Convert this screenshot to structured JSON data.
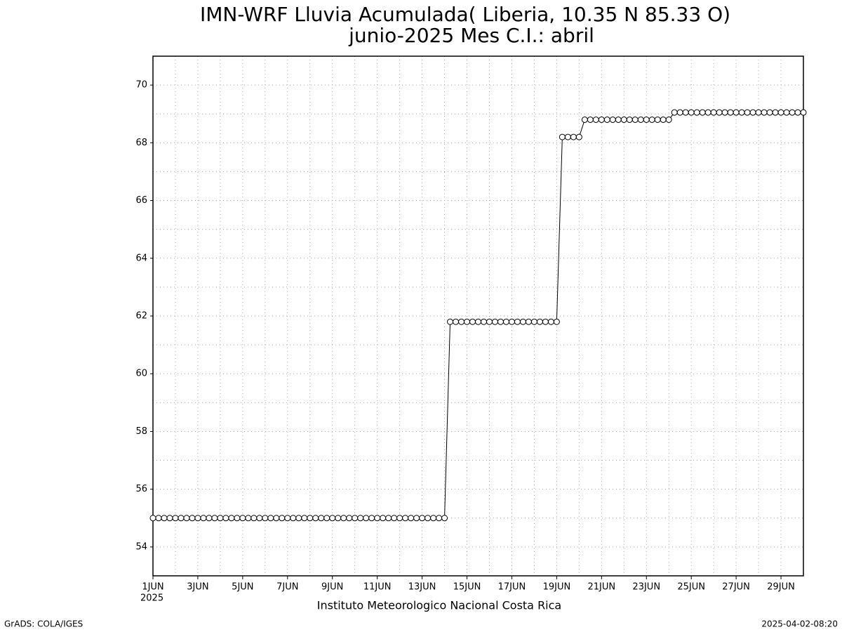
{
  "chart_data": {
    "type": "line",
    "title": "IMN-WRF  Lluvia Acumulada( Liberia, 10.35  N 85.33  O)",
    "subtitle": "junio-2025 Mes C.I.: abril",
    "x_label": "Instituto Meteorologico Nacional Costa Rica",
    "x_year_label": "2025",
    "footer_left": "GrADS: COLA/IGES",
    "footer_right": "2025-04-02-08:20",
    "x": [
      0,
      0.25,
      0.5,
      0.75,
      1,
      1.25,
      1.5,
      1.75,
      2,
      2.25,
      2.5,
      2.75,
      3,
      3.25,
      3.5,
      3.75,
      4,
      4.25,
      4.5,
      4.75,
      5,
      5.25,
      5.5,
      5.75,
      6,
      6.25,
      6.5,
      6.75,
      7,
      7.25,
      7.5,
      7.75,
      8,
      8.25,
      8.5,
      8.75,
      9,
      9.25,
      9.5,
      9.75,
      10,
      10.25,
      10.5,
      10.75,
      11,
      11.25,
      11.5,
      11.75,
      12,
      12.25,
      12.5,
      12.75,
      13,
      13.25,
      13.5,
      13.75,
      14,
      14.25,
      14.5,
      14.75,
      15,
      15.25,
      15.5,
      15.75,
      16,
      16.25,
      16.5,
      16.75,
      17,
      17.25,
      17.5,
      17.75,
      18,
      18.25,
      18.5,
      18.75,
      19,
      19.25,
      19.5,
      19.75,
      20,
      20.25,
      20.5,
      20.75,
      21,
      21.25,
      21.5,
      21.75,
      22,
      22.25,
      22.5,
      22.75,
      23,
      23.25,
      23.5,
      23.75,
      24,
      24.25,
      24.5,
      24.75,
      25,
      25.25,
      25.5,
      25.75,
      26,
      26.25,
      26.5,
      26.75,
      27,
      27.25,
      27.5,
      27.75,
      28,
      28.25,
      28.5,
      28.75,
      29
    ],
    "values": [
      55,
      55,
      55,
      55,
      55,
      55,
      55,
      55,
      55,
      55,
      55,
      55,
      55,
      55,
      55,
      55,
      55,
      55,
      55,
      55,
      55,
      55,
      55,
      55,
      55,
      55,
      55,
      55,
      55,
      55,
      55,
      55,
      55,
      55,
      55,
      55,
      55,
      55,
      55,
      55,
      55,
      55,
      55,
      55,
      55,
      55,
      55,
      55,
      55,
      55,
      55,
      55,
      55,
      61.8,
      61.8,
      61.8,
      61.8,
      61.8,
      61.8,
      61.8,
      61.8,
      61.8,
      61.8,
      61.8,
      61.8,
      61.8,
      61.8,
      61.8,
      61.8,
      61.8,
      61.8,
      61.8,
      61.8,
      68.2,
      68.2,
      68.2,
      68.2,
      68.8,
      68.8,
      68.8,
      68.8,
      68.8,
      68.8,
      68.8,
      68.8,
      68.8,
      68.8,
      68.8,
      68.8,
      68.8,
      68.8,
      68.8,
      68.8,
      69.05,
      69.05,
      69.05,
      69.05,
      69.05,
      69.05,
      69.05,
      69.05,
      69.05,
      69.05,
      69.05,
      69.05,
      69.05,
      69.05,
      69.05,
      69.05,
      69.05,
      69.05,
      69.05,
      69.05,
      69.05,
      69.05,
      69.05,
      69.05
    ],
    "color": "#000000",
    "xlim": [
      0,
      29
    ],
    "ylim": [
      53,
      71
    ],
    "xticks": [
      {
        "value": 0,
        "label": "1JUN"
      },
      {
        "value": 2,
        "label": "3JUN"
      },
      {
        "value": 4,
        "label": "5JUN"
      },
      {
        "value": 6,
        "label": "7JUN"
      },
      {
        "value": 8,
        "label": "9JUN"
      },
      {
        "value": 10,
        "label": "11JUN"
      },
      {
        "value": 12,
        "label": "13JUN"
      },
      {
        "value": 14,
        "label": "15JUN"
      },
      {
        "value": 16,
        "label": "17JUN"
      },
      {
        "value": 18,
        "label": "19JUN"
      },
      {
        "value": 20,
        "label": "21JUN"
      },
      {
        "value": 22,
        "label": "23JUN"
      },
      {
        "value": 24,
        "label": "25JUN"
      },
      {
        "value": 26,
        "label": "27JUN"
      },
      {
        "value": 28,
        "label": "29JUN"
      }
    ],
    "yticks": [
      54,
      56,
      58,
      60,
      62,
      64,
      66,
      68,
      70
    ],
    "x_grid": [
      1,
      2,
      3,
      4,
      5,
      6,
      7,
      8,
      9,
      10,
      11,
      12,
      13,
      14,
      15,
      16,
      17,
      18,
      19,
      20,
      21,
      22,
      23,
      24,
      25,
      26,
      27,
      28
    ],
    "y_grid": [
      54,
      55,
      56,
      57,
      58,
      59,
      60,
      61,
      62,
      63,
      64,
      65,
      66,
      67,
      68,
      69,
      70
    ],
    "grid": true
  }
}
